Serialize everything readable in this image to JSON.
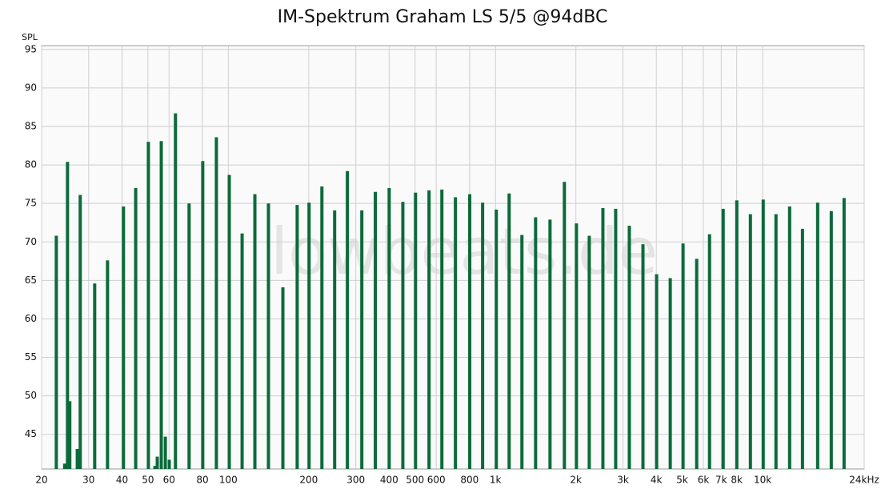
{
  "chart_data": {
    "type": "bar",
    "title": "IM-Spektrum Graham LS 5/5 @94dBC",
    "y_label": "SPL",
    "watermark": "lowbeats.de",
    "x_scale": "log",
    "grid": true,
    "color": "#0b6a3a",
    "x": [
      22.7,
      24.4,
      25,
      25.5,
      27.2,
      27.9,
      31.6,
      35.3,
      40.5,
      45,
      50.2,
      53.1,
      54.2,
      56.1,
      58.1,
      60.1,
      63.4,
      71.3,
      80.2,
      90.2,
      100.8,
      112.6,
      125.7,
      141.3,
      160,
      181,
      200.5,
      224,
      250,
      279,
      316,
      355,
      400,
      450,
      502,
      564,
      630,
      708,
      801,
      895,
      1007,
      1125,
      1256,
      1413,
      1600,
      1811,
      2009,
      2244,
      2524,
      2818,
      3170,
      3565,
      4010,
      4510,
      5036,
      5665,
      6328,
      7117,
      8005,
      9000,
      10050,
      11220,
      12620,
      14100,
      16070,
      18070,
      20180
    ],
    "values": [
      70.8,
      41.2,
      80.4,
      49.3,
      43.1,
      76.1,
      64.6,
      67.6,
      74.6,
      77,
      83,
      40.9,
      42.1,
      83.1,
      44.7,
      41.7,
      86.7,
      75,
      80.5,
      83.6,
      78.7,
      71.1,
      76.2,
      75,
      64.1,
      74.8,
      75.1,
      77.2,
      74.1,
      79.2,
      74.1,
      76.5,
      77,
      75.2,
      76.4,
      76.7,
      76.8,
      75.8,
      76.2,
      75.1,
      74.2,
      76.3,
      70.9,
      73.2,
      72.9,
      77.8,
      72.4,
      70.8,
      74.4,
      74.3,
      72.1,
      69.7,
      65.8,
      65.3,
      69.8,
      67.8,
      71,
      74.3,
      75.4,
      73.6,
      75.5,
      73.6,
      74.6,
      71.7,
      75.1,
      74,
      75.7
    ],
    "xlim": [
      20,
      24000
    ],
    "ylim": [
      40.5,
      95.5
    ],
    "xticks": [
      20,
      30,
      40,
      50,
      60,
      80,
      100,
      200,
      300,
      400,
      500,
      600,
      800,
      {
        "value": 1000,
        "label": "1k"
      },
      {
        "value": 2000,
        "label": "2k"
      },
      {
        "value": 3000,
        "label": "3k"
      },
      {
        "value": 4000,
        "label": "4k"
      },
      {
        "value": 5000,
        "label": "5k"
      },
      {
        "value": 6000,
        "label": "6k"
      },
      {
        "value": 7000,
        "label": "7k"
      },
      {
        "value": 8000,
        "label": "8k"
      },
      {
        "value": 10000,
        "label": "10k"
      },
      {
        "value": 24000,
        "label": "24kHz"
      }
    ],
    "yticks": [
      45,
      50,
      55,
      60,
      65,
      70,
      75,
      80,
      85,
      90,
      95
    ]
  }
}
